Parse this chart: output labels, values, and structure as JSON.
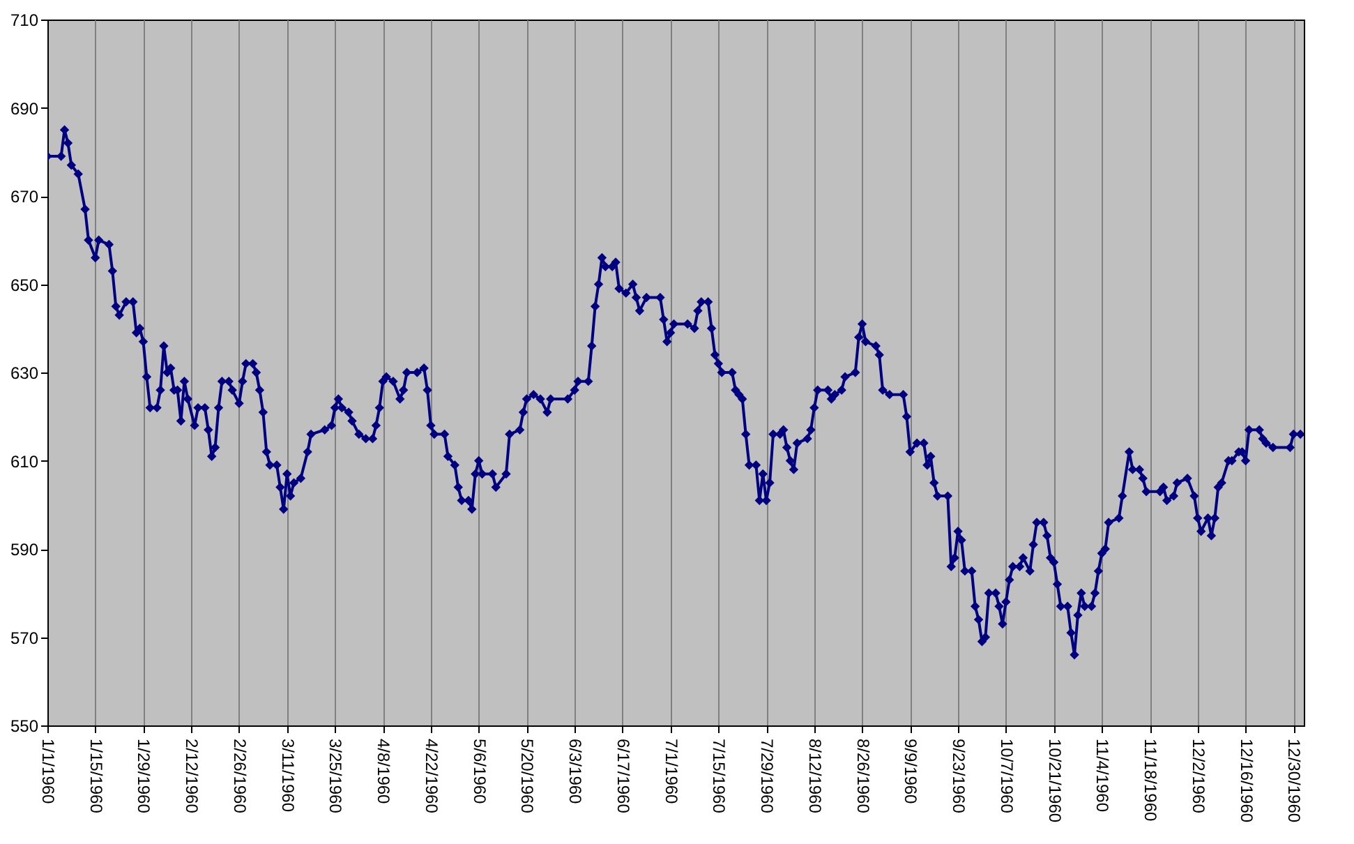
{
  "chart_data": {
    "type": "line",
    "x": [
      "1960-01-01",
      "1960-01-05",
      "1960-01-06",
      "1960-01-07",
      "1960-01-08",
      "1960-01-10",
      "1960-01-12",
      "1960-01-13",
      "1960-01-15",
      "1960-01-16",
      "1960-01-19",
      "1960-01-20",
      "1960-01-21",
      "1960-01-22",
      "1960-01-24",
      "1960-01-26",
      "1960-01-27",
      "1960-01-28",
      "1960-01-29",
      "1960-01-30",
      "1960-01-31",
      "1960-02-02",
      "1960-02-03",
      "1960-02-04",
      "1960-02-05",
      "1960-02-06",
      "1960-02-07",
      "1960-02-08",
      "1960-02-09",
      "1960-02-10",
      "1960-02-11",
      "1960-02-13",
      "1960-02-14",
      "1960-02-16",
      "1960-02-17",
      "1960-02-18",
      "1960-02-19",
      "1960-02-20",
      "1960-02-21",
      "1960-02-23",
      "1960-02-24",
      "1960-02-26",
      "1960-02-27",
      "1960-02-28",
      "1960-03-01",
      "1960-03-02",
      "1960-03-03",
      "1960-03-04",
      "1960-03-05",
      "1960-03-06",
      "1960-03-08",
      "1960-03-09",
      "1960-03-10",
      "1960-03-11",
      "1960-03-12",
      "1960-03-13",
      "1960-03-15",
      "1960-03-17",
      "1960-03-18",
      "1960-03-22",
      "1960-03-24",
      "1960-03-25",
      "1960-03-26",
      "1960-03-27",
      "1960-03-29",
      "1960-03-30",
      "1960-04-01",
      "1960-04-03",
      "1960-04-05",
      "1960-04-06",
      "1960-04-07",
      "1960-04-08",
      "1960-04-09",
      "1960-04-11",
      "1960-04-13",
      "1960-04-14",
      "1960-04-15",
      "1960-04-18",
      "1960-04-20",
      "1960-04-21",
      "1960-04-22",
      "1960-04-23",
      "1960-04-26",
      "1960-04-27",
      "1960-04-29",
      "1960-04-30",
      "1960-05-01",
      "1960-05-03",
      "1960-05-04",
      "1960-05-05",
      "1960-05-06",
      "1960-05-07",
      "1960-05-10",
      "1960-05-11",
      "1960-05-14",
      "1960-05-15",
      "1960-05-18",
      "1960-05-19",
      "1960-05-20",
      "1960-05-22",
      "1960-05-24",
      "1960-05-26",
      "1960-05-27",
      "1960-06-01",
      "1960-06-03",
      "1960-06-04",
      "1960-06-07",
      "1960-06-08",
      "1960-06-09",
      "1960-06-10",
      "1960-06-11",
      "1960-06-12",
      "1960-06-14",
      "1960-06-15",
      "1960-06-16",
      "1960-06-18",
      "1960-06-20",
      "1960-06-21",
      "1960-06-22",
      "1960-06-24",
      "1960-06-28",
      "1960-06-29",
      "1960-06-30",
      "1960-07-01",
      "1960-07-02",
      "1960-07-06",
      "1960-07-08",
      "1960-07-09",
      "1960-07-10",
      "1960-07-12",
      "1960-07-13",
      "1960-07-14",
      "1960-07-15",
      "1960-07-16",
      "1960-07-19",
      "1960-07-20",
      "1960-07-21",
      "1960-07-22",
      "1960-07-23",
      "1960-07-24",
      "1960-07-26",
      "1960-07-27",
      "1960-07-28",
      "1960-07-29",
      "1960-07-30",
      "1960-07-31",
      "1960-08-02",
      "1960-08-03",
      "1960-08-04",
      "1960-08-05",
      "1960-08-06",
      "1960-08-07",
      "1960-08-10",
      "1960-08-11",
      "1960-08-12",
      "1960-08-13",
      "1960-08-16",
      "1960-08-17",
      "1960-08-18",
      "1960-08-20",
      "1960-08-21",
      "1960-08-24",
      "1960-08-25",
      "1960-08-26",
      "1960-08-27",
      "1960-08-30",
      "1960-08-31",
      "1960-09-01",
      "1960-09-03",
      "1960-09-07",
      "1960-09-08",
      "1960-09-09",
      "1960-09-11",
      "1960-09-13",
      "1960-09-14",
      "1960-09-15",
      "1960-09-16",
      "1960-09-17",
      "1960-09-20",
      "1960-09-21",
      "1960-09-22",
      "1960-09-23",
      "1960-09-24",
      "1960-09-25",
      "1960-09-27",
      "1960-09-28",
      "1960-09-29",
      "1960-09-30",
      "1960-10-01",
      "1960-10-02",
      "1960-10-04",
      "1960-10-05",
      "1960-10-06",
      "1960-10-07",
      "1960-10-08",
      "1960-10-09",
      "1960-10-11",
      "1960-10-12",
      "1960-10-14",
      "1960-10-15",
      "1960-10-16",
      "1960-10-18",
      "1960-10-19",
      "1960-10-20",
      "1960-10-21",
      "1960-10-22",
      "1960-10-23",
      "1960-10-25",
      "1960-10-26",
      "1960-10-27",
      "1960-10-28",
      "1960-10-29",
      "1960-10-30",
      "1960-11-01",
      "1960-11-02",
      "1960-11-03",
      "1960-11-04",
      "1960-11-05",
      "1960-11-06",
      "1960-11-09",
      "1960-11-10",
      "1960-11-12",
      "1960-11-13",
      "1960-11-15",
      "1960-11-16",
      "1960-11-17",
      "1960-11-21",
      "1960-11-22",
      "1960-11-23",
      "1960-11-25",
      "1960-11-26",
      "1960-11-29",
      "1960-12-01",
      "1960-12-02",
      "1960-12-03",
      "1960-12-05",
      "1960-12-06",
      "1960-12-07",
      "1960-12-08",
      "1960-12-09",
      "1960-12-11",
      "1960-12-12",
      "1960-12-14",
      "1960-12-15",
      "1960-12-16",
      "1960-12-17",
      "1960-12-20",
      "1960-12-21",
      "1960-12-22",
      "1960-12-24",
      "1960-12-29",
      "1960-12-30",
      "1961-01-01"
    ],
    "series": [
      {
        "color": "#000080",
        "values": [
          679,
          679,
          685,
          682,
          677,
          675,
          667,
          660,
          656,
          660,
          659,
          653,
          645,
          643,
          646,
          646,
          639,
          640,
          637,
          629,
          622,
          622,
          626,
          636,
          630,
          631,
          626,
          626,
          619,
          628,
          624,
          618,
          622,
          622,
          617,
          611,
          613,
          622,
          628,
          628,
          626,
          623,
          628,
          632,
          632,
          630,
          626,
          621,
          612,
          609,
          609,
          604,
          599,
          607,
          602,
          605,
          606,
          612,
          616,
          617,
          618,
          622,
          624,
          622,
          621,
          619,
          616,
          615,
          615,
          618,
          622,
          628,
          629,
          628,
          624,
          626,
          630,
          630,
          631,
          626,
          618,
          616,
          616,
          611,
          609,
          604,
          601,
          601,
          599,
          607,
          610,
          607,
          607,
          604,
          607,
          616,
          617,
          621,
          624,
          625,
          624,
          621,
          624,
          624,
          626,
          628,
          628,
          636,
          645,
          650,
          656,
          654,
          654,
          655,
          649,
          648,
          650,
          647,
          644,
          647,
          647,
          642,
          637,
          639,
          641,
          641,
          640,
          644,
          646,
          646,
          640,
          634,
          632,
          630,
          630,
          626,
          625,
          624,
          616,
          609,
          609,
          601,
          607,
          601,
          605,
          616,
          616,
          617,
          613,
          610,
          608,
          614,
          615,
          617,
          622,
          626,
          626,
          624,
          625,
          626,
          629,
          630,
          638,
          641,
          637,
          636,
          634,
          626,
          625,
          625,
          620,
          612,
          614,
          614,
          609,
          611,
          605,
          602,
          602,
          586,
          588,
          594,
          592,
          585,
          585,
          577,
          574,
          569,
          570,
          580,
          580,
          577,
          573,
          578,
          583,
          586,
          586,
          588,
          585,
          591,
          596,
          596,
          593,
          588,
          587,
          582,
          577,
          577,
          571,
          566,
          575,
          580,
          577,
          577,
          580,
          585,
          589,
          590,
          596,
          597,
          602,
          612,
          608,
          608,
          606,
          603,
          603,
          604,
          601,
          602,
          605,
          606,
          602,
          597,
          594,
          597,
          593,
          597,
          604,
          605,
          610,
          610,
          612,
          612,
          610,
          617,
          617,
          615,
          614,
          613,
          613,
          616,
          616
        ]
      }
    ],
    "xlim": [
      "1960-01-01",
      "1961-01-02"
    ],
    "xticks": [
      {
        "value": "1960-01-01",
        "label": "1/1/1960"
      },
      {
        "value": "1960-01-15",
        "label": "1/15/1960"
      },
      {
        "value": "1960-01-29",
        "label": "1/29/1960"
      },
      {
        "value": "1960-02-12",
        "label": "2/12/1960"
      },
      {
        "value": "1960-02-26",
        "label": "2/26/1960"
      },
      {
        "value": "1960-03-11",
        "label": "3/11/1960"
      },
      {
        "value": "1960-03-25",
        "label": "3/25/1960"
      },
      {
        "value": "1960-04-08",
        "label": "4/8/1960"
      },
      {
        "value": "1960-04-22",
        "label": "4/22/1960"
      },
      {
        "value": "1960-05-06",
        "label": "5/6/1960"
      },
      {
        "value": "1960-05-20",
        "label": "5/20/1960"
      },
      {
        "value": "1960-06-03",
        "label": "6/3/1960"
      },
      {
        "value": "1960-06-17",
        "label": "6/17/1960"
      },
      {
        "value": "1960-07-01",
        "label": "7/1/1960"
      },
      {
        "value": "1960-07-15",
        "label": "7/15/1960"
      },
      {
        "value": "1960-07-29",
        "label": "7/29/1960"
      },
      {
        "value": "1960-08-12",
        "label": "8/12/1960"
      },
      {
        "value": "1960-08-26",
        "label": "8/26/1960"
      },
      {
        "value": "1960-09-09",
        "label": "9/9/1960"
      },
      {
        "value": "1960-09-23",
        "label": "9/23/1960"
      },
      {
        "value": "1960-10-07",
        "label": "10/7/1960"
      },
      {
        "value": "1960-10-21",
        "label": "10/21/1960"
      },
      {
        "value": "1960-11-04",
        "label": "11/4/1960"
      },
      {
        "value": "1960-11-18",
        "label": "11/18/1960"
      },
      {
        "value": "1960-12-02",
        "label": "12/2/1960"
      },
      {
        "value": "1960-12-16",
        "label": "12/16/1960"
      },
      {
        "value": "1960-12-30",
        "label": "12/30/1960"
      }
    ],
    "ylim": [
      550,
      710
    ],
    "yticks": [
      550,
      570,
      590,
      610,
      630,
      650,
      670,
      690,
      710
    ],
    "grid": "x",
    "marker": "diamond",
    "line_style": "solid"
  }
}
